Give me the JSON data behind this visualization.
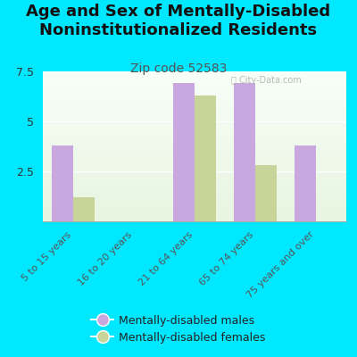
{
  "title": "Age and Sex of Mentally-Disabled\nNoninstitutionalized Residents",
  "subtitle": "Zip code 52583",
  "categories": [
    "5 to 15 years",
    "16 to 20 years",
    "21 to 64 years",
    "65 to 74 years",
    "75 years and over"
  ],
  "males": [
    3.8,
    0.0,
    6.9,
    6.9,
    3.8
  ],
  "females": [
    1.2,
    0.0,
    6.3,
    2.8,
    0.0
  ],
  "male_color": "#c9a8e0",
  "female_color": "#c8d49a",
  "background_color": "#00e8ff",
  "ylim": [
    0,
    7.5
  ],
  "yticks": [
    0,
    2.5,
    5,
    7.5
  ],
  "title_fontsize": 13,
  "subtitle_fontsize": 10,
  "legend_male": "Mentally-disabled males",
  "legend_female": "Mentally-disabled females",
  "bar_width": 0.35
}
